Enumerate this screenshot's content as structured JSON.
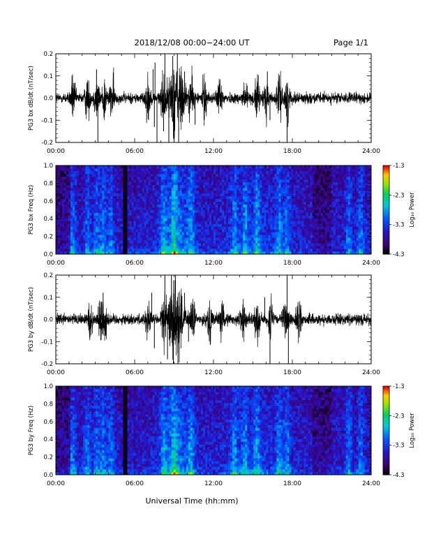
{
  "header": {
    "title": "2018/12/08  00:00−24:00 UT",
    "page": "Page 1/1"
  },
  "xlabel": "Universal Time (hh:mm)",
  "x_ticks": [
    "00:00",
    "06:00",
    "12:00",
    "18:00",
    "24:00"
  ],
  "colorbar": {
    "label": "Log₁₀ Power",
    "ticks": [
      "-1.3",
      "-2.3",
      "-3.3",
      "-4.3"
    ],
    "range": [
      -4.3,
      -1.3
    ]
  },
  "chart_data": [
    {
      "type": "line",
      "ylabel": "PG3 bx dB/dt (nT/sec)",
      "xlim": [
        0,
        24
      ],
      "ylim": [
        -0.2,
        0.2
      ],
      "y_ticks": [
        "0.2",
        "0.1",
        "0.0",
        "-0.1",
        "-0.2"
      ],
      "activity_hours": [
        1.3,
        2.4,
        3.1,
        3.7,
        4.3,
        7.0,
        8.2,
        9.0,
        9.6,
        10.3,
        11.3,
        12.5,
        14.4,
        15.3,
        16.0,
        17.0,
        17.6
      ],
      "spikes": [
        {
          "x": 3.1,
          "y": 0.13
        },
        {
          "x": 3.2,
          "y": -0.2
        },
        {
          "x": 7.4,
          "y": 0.13
        },
        {
          "x": 7.5,
          "y": -0.13
        },
        {
          "x": 7.55,
          "y": 0.16
        },
        {
          "x": 7.7,
          "y": -0.2
        },
        {
          "x": 8.2,
          "y": -0.15
        },
        {
          "x": 8.3,
          "y": 0.2
        },
        {
          "x": 8.6,
          "y": -0.22
        },
        {
          "x": 8.9,
          "y": 0.19
        },
        {
          "x": 9.0,
          "y": -0.2
        },
        {
          "x": 9.25,
          "y": 0.2
        },
        {
          "x": 9.35,
          "y": -0.21
        },
        {
          "x": 9.8,
          "y": 0.12
        },
        {
          "x": 10.6,
          "y": -0.12
        },
        {
          "x": 16.1,
          "y": 0.12
        },
        {
          "x": 16.3,
          "y": -0.1
        },
        {
          "x": 17.6,
          "y": -0.2
        }
      ]
    },
    {
      "type": "heatmap",
      "ylabel": "PG3 bx Freq (Hz)",
      "xlim": [
        0,
        24
      ],
      "ylim": [
        0,
        1.0
      ],
      "y_ticks": [
        "1.0",
        "0.8",
        "0.6",
        "0.4",
        "0.2",
        "0.0"
      ],
      "dark_bands_hours": [
        5.2,
        5.4
      ],
      "bright_hours": [
        1.3,
        2.4,
        3.1,
        3.6,
        4.2,
        8.2,
        9.0,
        10.3,
        13.6,
        14.4,
        15.3,
        17.0,
        17.6,
        22.3,
        23.2
      ]
    },
    {
      "type": "line",
      "ylabel": "PG3 by dB/dt (nT/sec)",
      "xlim": [
        0,
        24
      ],
      "ylim": [
        -0.2,
        0.2
      ],
      "y_ticks": [
        "0.2",
        "0.1",
        "0.0",
        "-0.1",
        "-0.2"
      ],
      "activity_hours": [
        2.6,
        3.4,
        3.7,
        7.0,
        8.2,
        8.9,
        9.4,
        10.4,
        11.7,
        12.6,
        14.2,
        15.3,
        16.3,
        17.5,
        18.5
      ],
      "spikes": [
        {
          "x": 3.5,
          "y": 0.08
        },
        {
          "x": 3.6,
          "y": 0.12
        },
        {
          "x": 7.3,
          "y": 0.12
        },
        {
          "x": 7.5,
          "y": -0.13
        },
        {
          "x": 8.3,
          "y": 0.2
        },
        {
          "x": 8.5,
          "y": -0.18
        },
        {
          "x": 8.8,
          "y": 0.22
        },
        {
          "x": 8.95,
          "y": -0.2
        },
        {
          "x": 9.1,
          "y": 0.2
        },
        {
          "x": 9.3,
          "y": -0.21
        },
        {
          "x": 9.8,
          "y": 0.12
        },
        {
          "x": 10.1,
          "y": -0.1
        },
        {
          "x": 15.9,
          "y": 0.1
        },
        {
          "x": 16.3,
          "y": -0.2
        },
        {
          "x": 17.6,
          "y": 0.21
        },
        {
          "x": 17.7,
          "y": -0.2
        }
      ]
    },
    {
      "type": "heatmap",
      "ylabel": "PG3 by Freq (Hz)",
      "xlim": [
        0,
        24
      ],
      "ylim": [
        0,
        1.0
      ],
      "y_ticks": [
        "1.0",
        "0.8",
        "0.6",
        "0.4",
        "0.2",
        "0.0"
      ],
      "dark_bands_hours": [
        5.2,
        5.4
      ],
      "bright_hours": [
        1.3,
        2.4,
        3.1,
        3.6,
        4.2,
        8.2,
        9.0,
        10.3,
        13.6,
        14.4,
        15.3,
        17.0,
        17.6,
        22.3,
        23.2
      ]
    }
  ]
}
